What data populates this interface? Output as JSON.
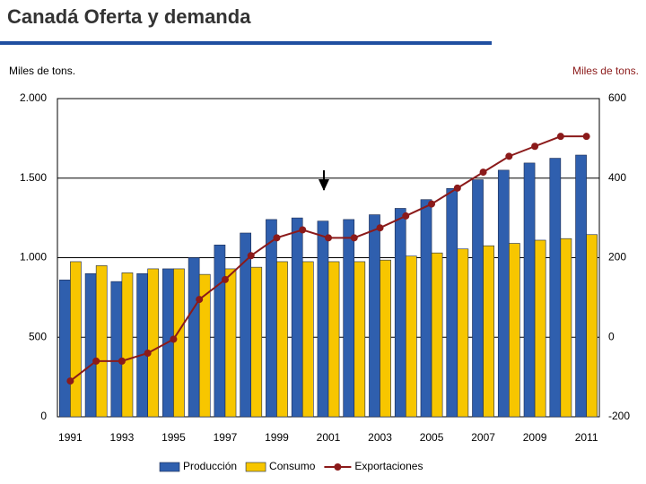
{
  "chart_data": {
    "type": "bar",
    "title": "Canadá Oferta y demanda",
    "y_label": "Miles de tons.",
    "y2_label": "Miles de tons.",
    "categories": [
      "1991",
      null,
      "1993",
      null,
      "1995",
      null,
      "1997",
      null,
      "1999",
      null,
      "2001",
      null,
      "2003",
      null,
      "2005",
      null,
      "2007",
      null,
      "2009",
      null,
      "2011"
    ],
    "series": [
      {
        "name": "Producción",
        "type": "bar",
        "color": "#2f5fae",
        "values": [
          860,
          900,
          850,
          900,
          930,
          1000,
          1080,
          1155,
          1240,
          1250,
          1230,
          1240,
          1270,
          1310,
          1365,
          1435,
          1490,
          1550,
          1595,
          1625,
          1645
        ]
      },
      {
        "name": "Consumo",
        "type": "bar",
        "color": "#f7c600",
        "values": [
          975,
          950,
          905,
          930,
          930,
          895,
          930,
          940,
          975,
          975,
          975,
          975,
          985,
          1010,
          1030,
          1055,
          1075,
          1090,
          1110,
          1120,
          1145
        ]
      },
      {
        "name": "Exportaciones",
        "type": "line",
        "axis": "y2",
        "color": "#8b1a1a",
        "values": [
          -110,
          -60,
          -60,
          -40,
          -5,
          95,
          145,
          205,
          250,
          270,
          250,
          250,
          275,
          305,
          335,
          375,
          415,
          455,
          480,
          505,
          505
        ]
      }
    ],
    "ylim": [
      0,
      2000
    ],
    "yticks": [
      0,
      500,
      {
        "value": 1000,
        "label": "1.000"
      },
      {
        "value": 1500,
        "label": "1.500"
      },
      {
        "value": 2000,
        "label": "2.000"
      }
    ],
    "y2lim": [
      -200,
      600
    ],
    "y2ticks": [
      -200,
      0,
      200,
      400,
      600
    ],
    "grid": true,
    "legend": "bottom"
  }
}
